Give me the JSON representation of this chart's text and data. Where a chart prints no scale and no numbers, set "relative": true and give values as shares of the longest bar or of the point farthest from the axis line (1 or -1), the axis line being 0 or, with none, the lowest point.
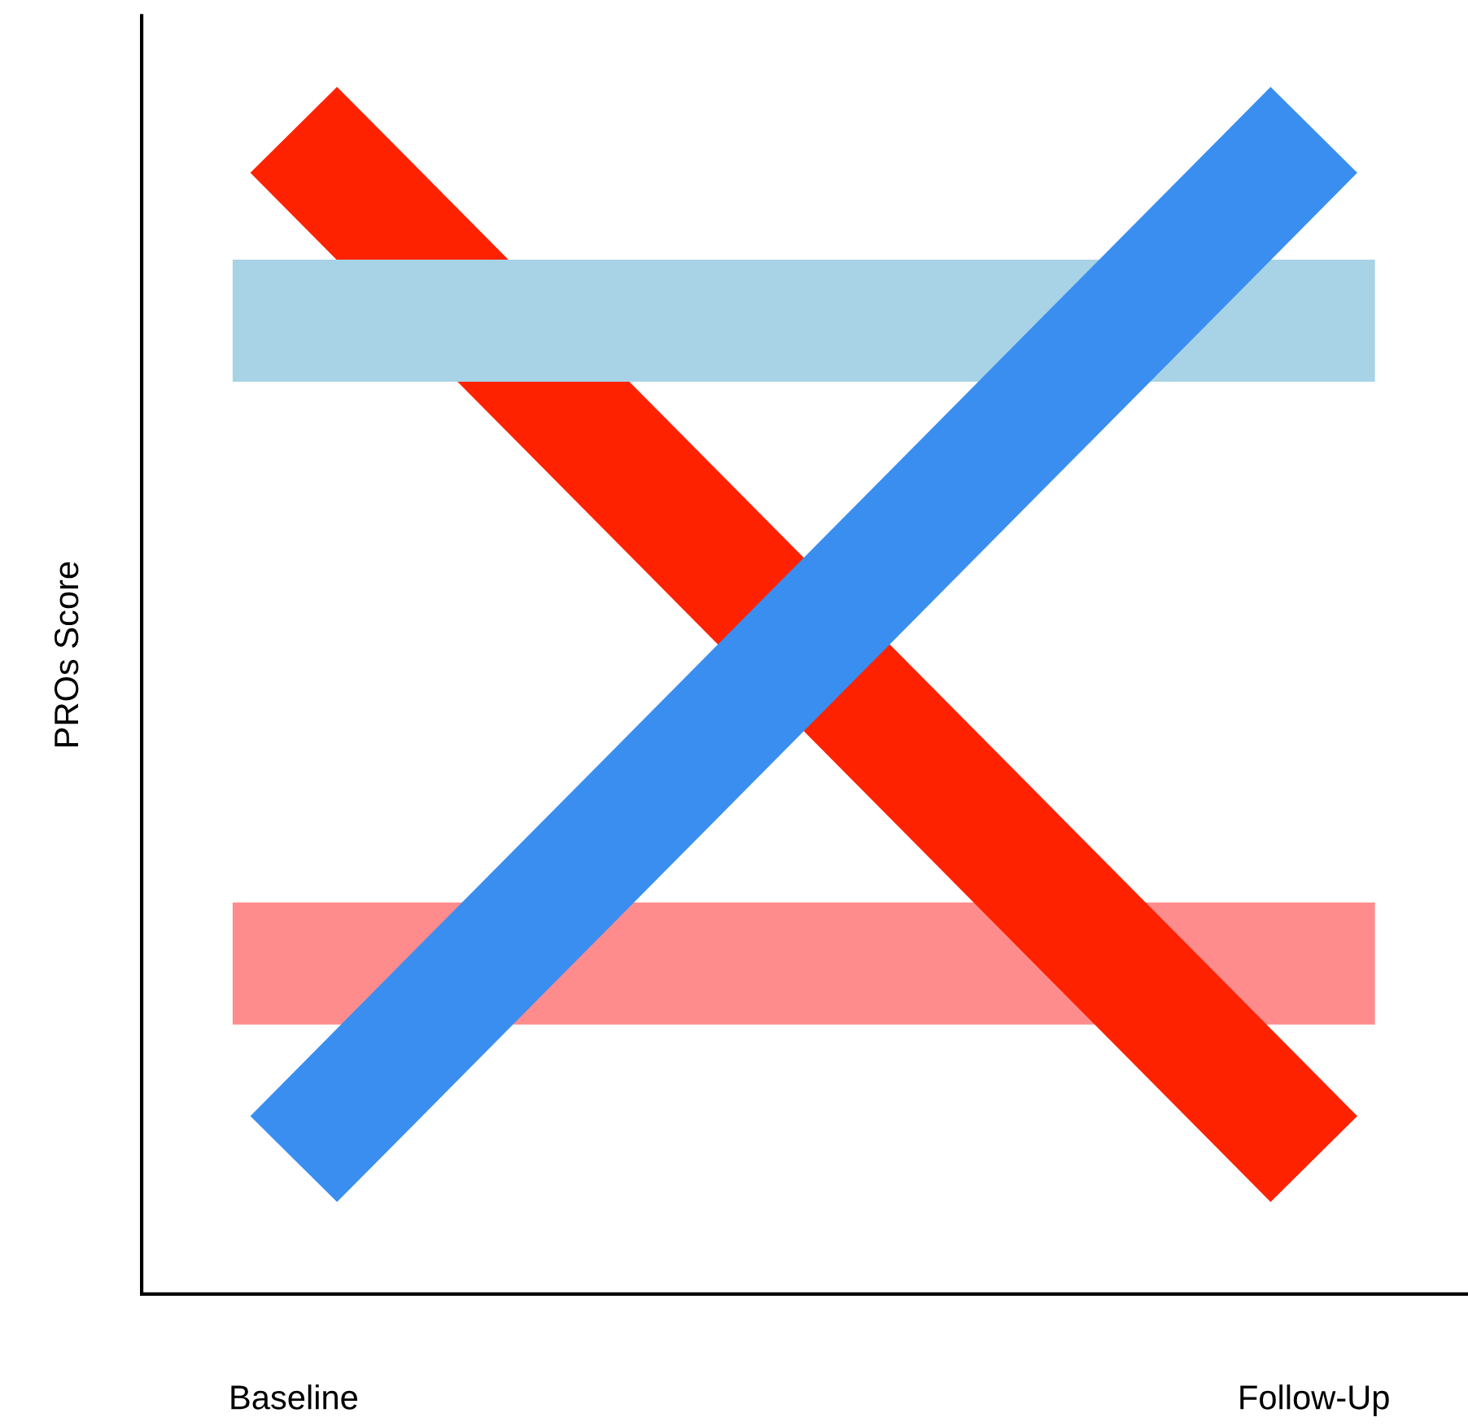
{
  "chart_data": {
    "type": "line",
    "relative": true,
    "ylabel": "PROs Score",
    "categories": [
      "Baseline",
      "Follow-Up"
    ],
    "series": [
      {
        "color": "#ff8c8c",
        "values": [
          0.284,
          0.284
        ]
      },
      {
        "color": "#ff2200",
        "values": [
          1,
          0.116
        ]
      },
      {
        "color": "#a8d3e6",
        "values": [
          0.836,
          0.836
        ]
      },
      {
        "color": "#3a8ef0",
        "values": [
          0.116,
          1
        ]
      }
    ],
    "grid": false,
    "marker": "none",
    "line_style": "solid"
  }
}
